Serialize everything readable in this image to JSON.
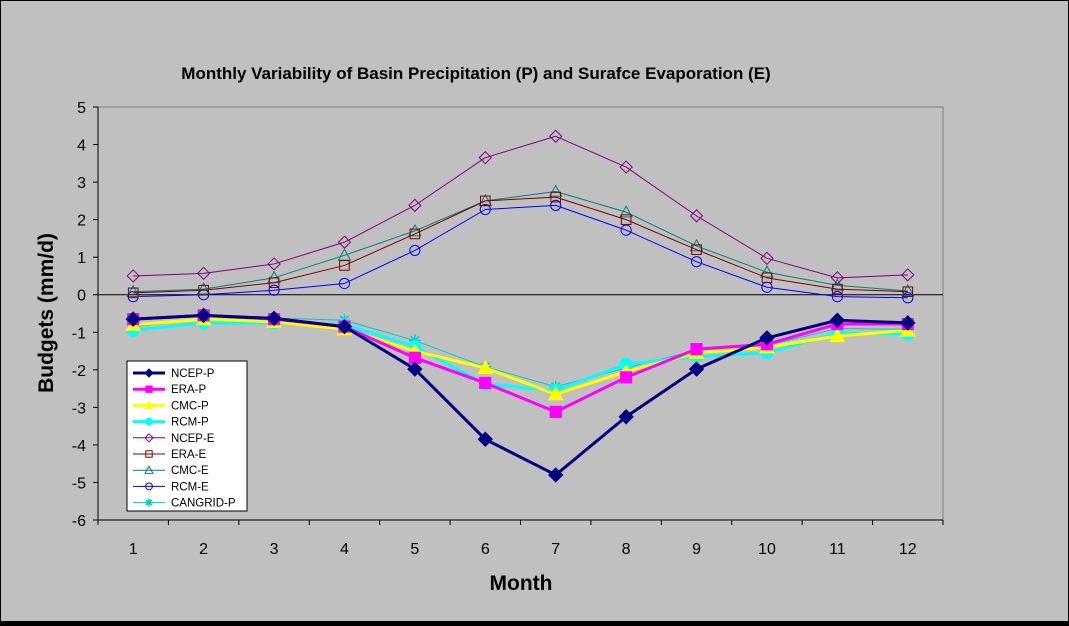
{
  "chart_data": {
    "type": "line",
    "title": "Monthly Variability of Basin Precipitation (P) and Surafce Evaporation (E)",
    "xlabel": "Month",
    "ylabel": "Budgets (mm/d)",
    "x": [
      1,
      2,
      3,
      4,
      5,
      6,
      7,
      8,
      9,
      10,
      11,
      12
    ],
    "ylim": [
      -6,
      5
    ],
    "yticks": [
      5,
      4,
      3,
      2,
      1,
      0,
      -1,
      -2,
      -3,
      -4,
      -5,
      -6
    ],
    "legend_position": "bottom-left",
    "grid": false,
    "plot_background": "#c0c0c0",
    "series": [
      {
        "name": "NCEP-P",
        "color": "#000080",
        "marker": "diamond-filled",
        "width": 3,
        "values": [
          -0.65,
          -0.55,
          -0.63,
          -0.85,
          -1.98,
          -3.85,
          -4.8,
          -3.25,
          -1.98,
          -1.15,
          -0.68,
          -0.75
        ]
      },
      {
        "name": "ERA-P",
        "color": "#ff00ff",
        "marker": "square-filled",
        "width": 3,
        "values": [
          -0.65,
          -0.55,
          -0.65,
          -0.85,
          -1.68,
          -2.35,
          -3.12,
          -2.2,
          -1.45,
          -1.32,
          -0.78,
          -0.78
        ]
      },
      {
        "name": "CMC-P",
        "color": "#ffff00",
        "marker": "triangle-filled",
        "width": 3,
        "values": [
          -0.8,
          -0.65,
          -0.72,
          -0.92,
          -1.5,
          -1.95,
          -2.65,
          -2.05,
          -1.55,
          -1.4,
          -1.1,
          -0.95
        ]
      },
      {
        "name": "RCM-P",
        "color": "#00ffff",
        "marker": "circle-filled",
        "width": 3,
        "values": [
          -0.95,
          -0.75,
          -0.75,
          -0.8,
          -1.38,
          -2.38,
          -2.55,
          -1.85,
          -1.65,
          -1.55,
          -1.02,
          -1.05
        ]
      },
      {
        "name": "NCEP-E",
        "color": "#800080",
        "marker": "diamond-open",
        "width": 1,
        "values": [
          0.5,
          0.57,
          0.82,
          1.4,
          2.38,
          3.65,
          4.22,
          3.4,
          2.1,
          0.97,
          0.45,
          0.53
        ]
      },
      {
        "name": "ERA-E",
        "color": "#800000",
        "marker": "square-open",
        "width": 1,
        "values": [
          0.05,
          0.12,
          0.32,
          0.78,
          1.62,
          2.5,
          2.6,
          2.0,
          1.2,
          0.45,
          0.15,
          0.08
        ]
      },
      {
        "name": "CMC-E",
        "color": "#008080",
        "marker": "triangle-open",
        "width": 1,
        "values": [
          0.08,
          0.15,
          0.45,
          1.05,
          1.7,
          2.5,
          2.75,
          2.2,
          1.3,
          0.6,
          0.25,
          0.1
        ]
      },
      {
        "name": "RCM-E",
        "color": "#0000ff",
        "marker": "circle-open",
        "width": 1,
        "values": [
          -0.05,
          0.0,
          0.12,
          0.3,
          1.18,
          2.27,
          2.38,
          1.72,
          0.88,
          0.2,
          -0.05,
          -0.08
        ]
      },
      {
        "name": "CANGRID-P",
        "color": "#00cccc",
        "marker": "asterisk",
        "width": 1,
        "values": [
          -0.85,
          -0.65,
          -0.62,
          -0.68,
          -1.22,
          -1.92,
          -2.45,
          -1.95,
          -1.48,
          -1.35,
          -0.9,
          -0.92
        ]
      }
    ]
  }
}
